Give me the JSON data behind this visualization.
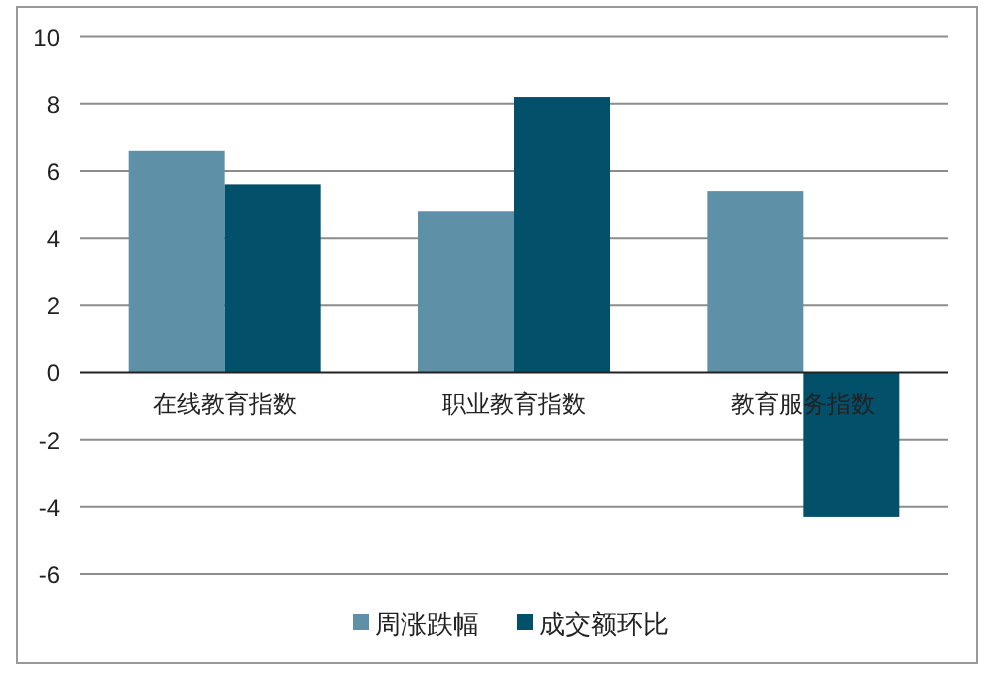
{
  "chart_data": {
    "type": "bar",
    "categories": [
      "在线教育指数",
      "职业教育指数",
      "教育服务指数"
    ],
    "series": [
      {
        "name": "周涨跌幅",
        "color": "#5e91a7",
        "values": [
          6.6,
          4.8,
          5.4
        ]
      },
      {
        "name": "成交额环比",
        "color": "#03506b",
        "values": [
          5.6,
          8.2,
          -4.3
        ]
      }
    ],
    "ylim": [
      -6,
      10
    ],
    "yticks": [
      -6,
      -4,
      -2,
      0,
      2,
      4,
      6,
      8,
      10
    ],
    "grid": "y",
    "legend": "bottom"
  }
}
